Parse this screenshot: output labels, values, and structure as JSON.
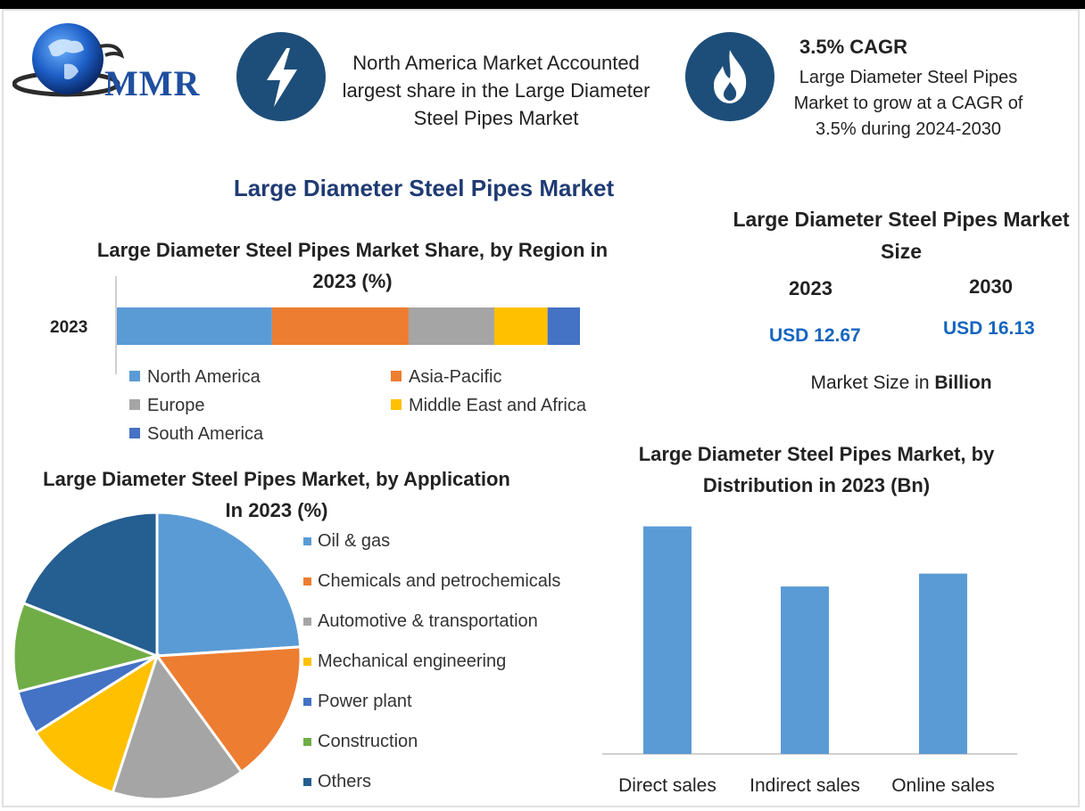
{
  "header": {
    "logo_text": "MMR",
    "info_regional": "North America Market Accounted largest share in the Large Diameter Steel Pipes Market",
    "cagr_title": "3.5% CAGR",
    "cagr_text": "Large Diameter Steel Pipes Market to grow at a CAGR of 3.5% during 2024-2030",
    "icons": [
      "globe-icon",
      "lightning-icon",
      "flame-icon"
    ]
  },
  "main_title": "Large Diameter Steel Pipes Market",
  "market_size": {
    "title": "Large Diameter Steel Pipes Market Size",
    "year_a": "2023",
    "year_b": "2030",
    "value_a": "USD 12.67",
    "value_b": "USD 16.13",
    "unit_prefix": "Market Size in ",
    "unit_bold": "Billion"
  },
  "colors": {
    "blue": "#5b9bd5",
    "orange": "#ed7d31",
    "gray": "#a5a5a5",
    "yellow": "#ffc000",
    "royal": "#4472c4",
    "green": "#70ad47",
    "navy": "#255e91",
    "dark_circle": "#1d4e79"
  },
  "chart_data": [
    {
      "type": "bar",
      "orientation": "horizontal-stacked",
      "title": "Large Diameter Steel Pipes Market Share, by Region in 2023 (%)",
      "categories": [
        "2023"
      ],
      "series": [
        {
          "name": "North America",
          "values": [
            33.5
          ],
          "color": "#5b9bd5"
        },
        {
          "name": "Asia-Pacific",
          "values": [
            29.5
          ],
          "color": "#ed7d31"
        },
        {
          "name": "Europe",
          "values": [
            18.5
          ],
          "color": "#a5a5a5"
        },
        {
          "name": "Middle East and Africa",
          "values": [
            11.5
          ],
          "color": "#ffc000"
        },
        {
          "name": "South America",
          "values": [
            7.0
          ],
          "color": "#4472c4"
        }
      ],
      "legend": "bottom"
    },
    {
      "type": "pie",
      "title": "Large Diameter Steel Pipes Market, by Application In 2023 (%)",
      "labels": [
        "Oil & gas",
        "Chemicals and petrochemicals",
        "Automotive & transportation",
        "Mechanical engineering",
        "Power plant",
        "Construction",
        "Others"
      ],
      "values": [
        24,
        16,
        15,
        11,
        5,
        10,
        19
      ],
      "colors": [
        "#5b9bd5",
        "#ed7d31",
        "#a5a5a5",
        "#ffc000",
        "#4472c4",
        "#70ad47",
        "#255e91"
      ],
      "legend": "right"
    },
    {
      "type": "bar",
      "title": "Large Diameter Steel Pipes Market, by Distribution in 2023 (Bn)",
      "categories": [
        "Direct sales",
        "Indirect sales",
        "Online sales"
      ],
      "values": [
        5.3,
        3.9,
        4.2
      ],
      "color": "#5b9bd5",
      "ylim": [
        0,
        5.5
      ],
      "grid": false
    }
  ]
}
